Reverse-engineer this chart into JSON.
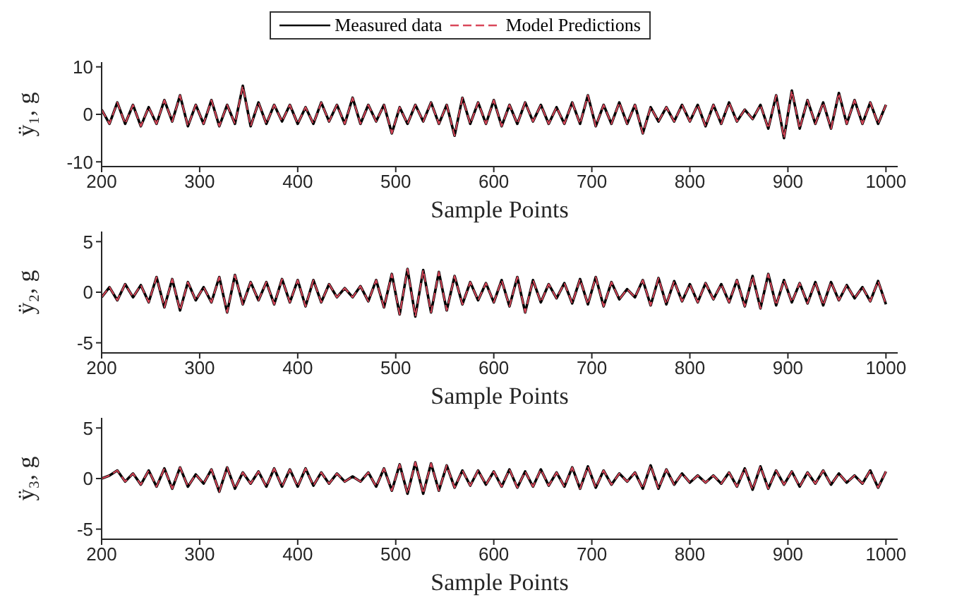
{
  "chart_data": [
    {
      "type": "line",
      "xlabel": "Sample Points",
      "ylabel": "ÿ₁, g",
      "legend": "top",
      "marker": "none",
      "xlim": [
        200,
        1012
      ],
      "xticks": [
        200,
        300,
        400,
        500,
        600,
        700,
        800,
        900,
        1000
      ],
      "ylim": [
        -11,
        11
      ],
      "yticks": [
        -10,
        0,
        10
      ],
      "x": [
        200,
        208,
        216,
        224,
        232,
        240,
        248,
        256,
        264,
        272,
        280,
        288,
        296,
        304,
        312,
        320,
        328,
        336,
        344,
        352,
        360,
        368,
        376,
        384,
        392,
        400,
        408,
        416,
        424,
        432,
        440,
        448,
        456,
        464,
        472,
        480,
        488,
        496,
        504,
        512,
        520,
        528,
        536,
        544,
        552,
        560,
        568,
        576,
        584,
        592,
        600,
        608,
        616,
        624,
        632,
        640,
        648,
        656,
        664,
        672,
        680,
        688,
        696,
        704,
        712,
        720,
        728,
        736,
        744,
        752,
        760,
        768,
        776,
        784,
        792,
        800,
        808,
        816,
        824,
        832,
        840,
        848,
        856,
        864,
        872,
        880,
        888,
        896,
        904,
        912,
        920,
        928,
        936,
        944,
        952,
        960,
        968,
        976,
        984,
        992,
        1000
      ],
      "series": [
        {
          "name": "Measured data",
          "color": "#000000",
          "line_style": "solid",
          "values": [
            1,
            -2,
            2.5,
            -2,
            2,
            -2.5,
            1.5,
            -2,
            3,
            -1.5,
            4,
            -2.5,
            2,
            -2,
            3,
            -2.5,
            2,
            -2,
            6,
            -2.5,
            2.5,
            -2,
            2,
            -1.5,
            2,
            -2,
            1.5,
            -2,
            2.5,
            -1.5,
            2,
            -2,
            3.5,
            -2,
            2,
            -1.5,
            2,
            -4,
            1.5,
            -2,
            2,
            -1.5,
            2.5,
            -2,
            2,
            -4.5,
            3.5,
            -2,
            2.5,
            -2,
            3,
            -2.5,
            2,
            -2,
            2.5,
            -1.5,
            2,
            -2,
            1.5,
            -2,
            2.5,
            -2,
            4,
            -2.5,
            2,
            -2,
            2.5,
            -2,
            2,
            -4,
            1.5,
            -1.5,
            1.5,
            -1.5,
            2,
            -1.5,
            2,
            -2.5,
            2,
            -2,
            2.5,
            -1.5,
            1,
            -1,
            2,
            -3,
            4,
            -5,
            5,
            -3,
            3,
            -2,
            2.5,
            -3,
            4.5,
            -2,
            3,
            -2,
            2.5,
            -2,
            2
          ]
        },
        {
          "name": "Model Predictions",
          "color": "#d9475a",
          "line_style": "dashed",
          "values": [
            1,
            -2,
            2.5,
            -2,
            2,
            -2.5,
            1.5,
            -2,
            3,
            -1.5,
            4,
            -2.5,
            2,
            -2,
            3,
            -2.5,
            2,
            -2,
            6,
            -2.5,
            2.5,
            -2,
            2,
            -1.5,
            2,
            -2,
            1.5,
            -2,
            2.5,
            -1.5,
            2,
            -2,
            3.5,
            -2,
            2,
            -1.5,
            2,
            -4,
            1.5,
            -2,
            2,
            -1.5,
            2.5,
            -2,
            2,
            -4.5,
            3.5,
            -2,
            2.5,
            -2,
            3,
            -2.5,
            2,
            -2,
            2.5,
            -1.5,
            2,
            -2,
            1.5,
            -2,
            2.5,
            -2,
            4,
            -2.5,
            2,
            -2,
            2.5,
            -2,
            2,
            -4,
            1.5,
            -1.5,
            1.5,
            -1.5,
            2,
            -1.5,
            2,
            -2.5,
            2,
            -2,
            2.5,
            -1.5,
            1,
            -1,
            2,
            -3,
            4,
            -5,
            5,
            -3,
            3,
            -2,
            2.5,
            -3,
            4.5,
            -2,
            3,
            -2,
            2.5,
            -2,
            2
          ]
        }
      ]
    },
    {
      "type": "line",
      "xlabel": "Sample Points",
      "ylabel": "ÿ₂, g",
      "marker": "none",
      "xlim": [
        200,
        1012
      ],
      "xticks": [
        200,
        300,
        400,
        500,
        600,
        700,
        800,
        900,
        1000
      ],
      "ylim": [
        -6,
        6
      ],
      "yticks": [
        -5,
        0,
        5
      ],
      "x": [
        200,
        208,
        216,
        224,
        232,
        240,
        248,
        256,
        264,
        272,
        280,
        288,
        296,
        304,
        312,
        320,
        328,
        336,
        344,
        352,
        360,
        368,
        376,
        384,
        392,
        400,
        408,
        416,
        424,
        432,
        440,
        448,
        456,
        464,
        472,
        480,
        488,
        496,
        504,
        512,
        520,
        528,
        536,
        544,
        552,
        560,
        568,
        576,
        584,
        592,
        600,
        608,
        616,
        624,
        632,
        640,
        648,
        656,
        664,
        672,
        680,
        688,
        696,
        704,
        712,
        720,
        728,
        736,
        744,
        752,
        760,
        768,
        776,
        784,
        792,
        800,
        808,
        816,
        824,
        832,
        840,
        848,
        856,
        864,
        872,
        880,
        888,
        896,
        904,
        912,
        920,
        928,
        936,
        944,
        952,
        960,
        968,
        976,
        984,
        992,
        1000
      ],
      "series": [
        {
          "color": "#000000",
          "line_style": "solid",
          "values": [
            -0.5,
            0.5,
            -0.8,
            0.8,
            -0.5,
            0.7,
            -1,
            1.5,
            -1.5,
            1.3,
            -1.8,
            1,
            -0.8,
            0.5,
            -1,
            1.5,
            -2,
            1.7,
            -1.2,
            1,
            -0.8,
            1,
            -1.2,
            1.3,
            -1,
            1.2,
            -1.4,
            1.2,
            -1,
            0.8,
            -0.5,
            0.4,
            -0.5,
            0.6,
            -0.9,
            1.2,
            -1.5,
            1.8,
            -2.2,
            2.3,
            -2.4,
            2.2,
            -2,
            2,
            -1.8,
            1.6,
            -1.2,
            1,
            -0.8,
            0.9,
            -1,
            1.2,
            -1.4,
            1.5,
            -2,
            1.2,
            -1,
            0.8,
            -0.6,
            0.9,
            -1.1,
            1.3,
            -1.2,
            1.5,
            -1.4,
            1,
            -0.7,
            0.3,
            -0.5,
            1.2,
            -1.3,
            1.4,
            -1.2,
            1.1,
            -0.9,
            0.8,
            -1,
            0.9,
            -0.7,
            0.8,
            -1,
            1.2,
            -1.4,
            1.6,
            -1.6,
            1.8,
            -1.3,
            1.2,
            -1,
            0.9,
            -1.1,
            1,
            -1.3,
            1,
            -0.8,
            0.7,
            -0.6,
            0.5,
            -0.9,
            1.1,
            -1.2
          ]
        },
        {
          "color": "#d9475a",
          "line_style": "dashed",
          "values": [
            -0.5,
            0.5,
            -0.8,
            0.8,
            -0.5,
            0.7,
            -1,
            1.5,
            -1.5,
            1.3,
            -1.8,
            1,
            -0.8,
            0.5,
            -1,
            1.5,
            -2,
            1.7,
            -1.2,
            1,
            -0.8,
            1,
            -1.2,
            1.3,
            -1,
            1.2,
            -1.4,
            1.2,
            -1,
            0.8,
            -0.5,
            0.4,
            -0.5,
            0.6,
            -0.9,
            1.2,
            -1.5,
            1.8,
            -2.2,
            2.3,
            -2.4,
            2.2,
            -2,
            2,
            -1.8,
            1.6,
            -1.2,
            1,
            -0.8,
            0.9,
            -1,
            1.2,
            -1.4,
            1.5,
            -2,
            1.2,
            -1,
            0.8,
            -0.6,
            0.9,
            -1.1,
            1.3,
            -1.2,
            1.5,
            -1.4,
            1,
            -0.7,
            0.3,
            -0.5,
            1.2,
            -1.3,
            1.4,
            -1.2,
            1.1,
            -0.9,
            0.8,
            -1,
            0.9,
            -0.7,
            0.8,
            -1,
            1.2,
            -1.4,
            1.6,
            -1.6,
            1.8,
            -1.3,
            1.2,
            -1,
            0.9,
            -1.1,
            1,
            -1.3,
            1,
            -0.8,
            0.7,
            -0.6,
            0.5,
            -0.9,
            1.1,
            -1.2
          ]
        }
      ]
    },
    {
      "type": "line",
      "xlabel": "Sample Points",
      "ylabel": "ÿ₃, g",
      "marker": "none",
      "xlim": [
        200,
        1012
      ],
      "xticks": [
        200,
        300,
        400,
        500,
        600,
        700,
        800,
        900,
        1000
      ],
      "ylim": [
        -6,
        6
      ],
      "yticks": [
        -5,
        0,
        5
      ],
      "x": [
        200,
        208,
        216,
        224,
        232,
        240,
        248,
        256,
        264,
        272,
        280,
        288,
        296,
        304,
        312,
        320,
        328,
        336,
        344,
        352,
        360,
        368,
        376,
        384,
        392,
        400,
        408,
        416,
        424,
        432,
        440,
        448,
        456,
        464,
        472,
        480,
        488,
        496,
        504,
        512,
        520,
        528,
        536,
        544,
        552,
        560,
        568,
        576,
        584,
        592,
        600,
        608,
        616,
        624,
        632,
        640,
        648,
        656,
        664,
        672,
        680,
        688,
        696,
        704,
        712,
        720,
        728,
        736,
        744,
        752,
        760,
        768,
        776,
        784,
        792,
        800,
        808,
        816,
        824,
        832,
        840,
        848,
        856,
        864,
        872,
        880,
        888,
        896,
        904,
        912,
        920,
        928,
        936,
        944,
        952,
        960,
        968,
        976,
        984,
        992,
        1000
      ],
      "series": [
        {
          "color": "#000000",
          "line_style": "solid",
          "values": [
            0,
            0.3,
            0.8,
            -0.3,
            0.5,
            -0.6,
            0.8,
            -0.8,
            1,
            -1,
            1.1,
            -0.8,
            0.4,
            -0.5,
            0.9,
            -1.3,
            1.1,
            -1,
            0.6,
            -0.5,
            0.7,
            -0.8,
            1,
            -0.8,
            0.9,
            -0.8,
            1,
            -0.7,
            0.6,
            -0.5,
            0.5,
            -0.3,
            0.2,
            -0.3,
            0.6,
            -0.8,
            1,
            -1.2,
            1.4,
            -1.5,
            1.6,
            -1.5,
            1.5,
            -1.2,
            1.3,
            -0.9,
            0.8,
            -0.7,
            0.8,
            -0.6,
            0.7,
            -0.8,
            0.9,
            -0.9,
            0.7,
            -0.8,
            0.9,
            -0.7,
            0.6,
            -0.8,
            1.1,
            -1,
            1.2,
            -0.9,
            0.8,
            -0.6,
            0.5,
            -0.3,
            0.6,
            -1,
            1.3,
            -1,
            0.9,
            -0.6,
            0.5,
            -0.4,
            0.3,
            -0.4,
            0.3,
            -0.5,
            0.6,
            -0.8,
            1,
            -1.1,
            1.2,
            -1,
            0.8,
            -0.6,
            0.7,
            -0.8,
            0.6,
            -0.5,
            0.8,
            -0.6,
            0.5,
            -0.4,
            0.3,
            -0.5,
            0.8,
            -0.9,
            0.7
          ]
        },
        {
          "color": "#d9475a",
          "line_style": "dashed",
          "values": [
            0,
            0.3,
            0.8,
            -0.3,
            0.5,
            -0.6,
            0.8,
            -0.8,
            1,
            -1,
            1.1,
            -0.8,
            0.4,
            -0.5,
            0.9,
            -1.3,
            1.1,
            -1,
            0.6,
            -0.5,
            0.7,
            -0.8,
            1,
            -0.8,
            0.9,
            -0.8,
            1,
            -0.7,
            0.6,
            -0.5,
            0.5,
            -0.3,
            0.2,
            -0.3,
            0.6,
            -0.8,
            1,
            -1.2,
            1.4,
            -1.5,
            1.6,
            -1.5,
            1.5,
            -1.2,
            1.3,
            -0.9,
            0.8,
            -0.7,
            0.8,
            -0.6,
            0.7,
            -0.8,
            0.9,
            -0.9,
            0.7,
            -0.8,
            0.9,
            -0.7,
            0.6,
            -0.8,
            1.1,
            -1,
            1.2,
            -0.9,
            0.8,
            -0.6,
            0.5,
            -0.3,
            0.6,
            -1,
            1.3,
            -1,
            0.9,
            -0.6,
            0.5,
            -0.4,
            0.3,
            -0.4,
            0.3,
            -0.5,
            0.6,
            -0.8,
            1,
            -1.1,
            1.2,
            -1,
            0.8,
            -0.6,
            0.7,
            -0.8,
            0.6,
            -0.5,
            0.8,
            -0.6,
            0.5,
            -0.4,
            0.3,
            -0.5,
            0.8,
            -0.9,
            0.7
          ]
        }
      ]
    }
  ]
}
